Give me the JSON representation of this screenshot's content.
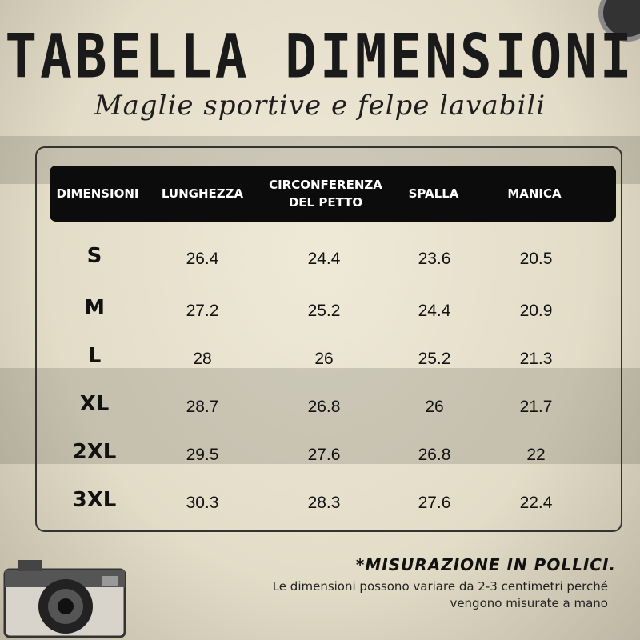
{
  "title": "TABELLA DIMENSIONI",
  "subtitle": "Maglie sportive e felpe lavabili",
  "table": {
    "headers": [
      "DIMENSIONI",
      "LUNGHEZZA",
      "CIRCONFERENZA DEL PETTO",
      "SPALLA",
      "MANICA"
    ],
    "rows": [
      {
        "size": "S",
        "values": [
          "26.4",
          "24.4",
          "23.6",
          "20.5"
        ]
      },
      {
        "size": "M",
        "values": [
          "27.2",
          "25.2",
          "24.4",
          "20.9"
        ]
      },
      {
        "size": "L",
        "values": [
          "28",
          "26",
          "25.2",
          "21.3"
        ]
      },
      {
        "size": "XL",
        "values": [
          "28.7",
          "26.8",
          "26",
          "21.7"
        ]
      },
      {
        "size": "2XL",
        "values": [
          "29.5",
          "27.6",
          "26.8",
          "22"
        ]
      },
      {
        "size": "3XL",
        "values": [
          "30.3",
          "28.3",
          "27.6",
          "22.4"
        ]
      }
    ]
  },
  "note": {
    "title": "*MISURAZIONE IN POLLICI.",
    "text": "Le dimensioni possono variare da 2-3 centimetri perché vengono misurate a mano"
  },
  "colors": {
    "header_bg": "#0c0c0c",
    "paper": "#efe9d8"
  }
}
